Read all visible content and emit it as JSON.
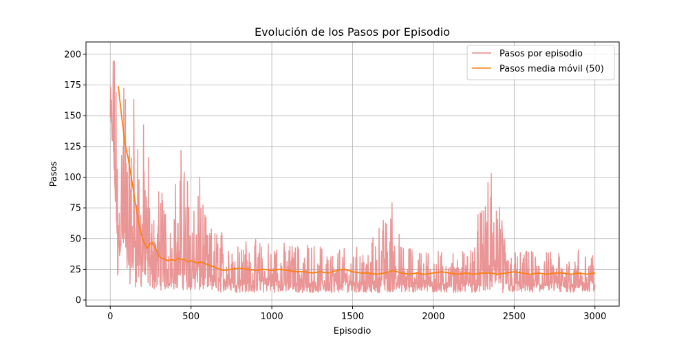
{
  "chart_data": {
    "type": "line",
    "title": "Evolución de los Pasos por Episodio",
    "xlabel": "Episodio",
    "ylabel": "Pasos",
    "xlim": [
      -150,
      3150
    ],
    "ylim": [
      -5,
      210
    ],
    "xticks": [
      0,
      500,
      1000,
      1500,
      2000,
      2500,
      3000
    ],
    "yticks": [
      0,
      25,
      50,
      75,
      100,
      125,
      150,
      175,
      200
    ],
    "grid": true,
    "legend_position": "top-right",
    "series": [
      {
        "name": "Pasos por episodio",
        "color": "#e8898b",
        "envelope": [
          {
            "x": 0,
            "low": 137,
            "high": 200
          },
          {
            "x": 20,
            "low": 110,
            "high": 200
          },
          {
            "x": 35,
            "low": 60,
            "high": 200
          },
          {
            "x": 45,
            "low": 5,
            "high": 200
          },
          {
            "x": 60,
            "low": 40,
            "high": 200
          },
          {
            "x": 80,
            "low": 25,
            "high": 200
          },
          {
            "x": 100,
            "low": 15,
            "high": 200
          },
          {
            "x": 130,
            "low": 12,
            "high": 200
          },
          {
            "x": 160,
            "low": 10,
            "high": 170
          },
          {
            "x": 200,
            "low": 8,
            "high": 150
          },
          {
            "x": 250,
            "low": 8,
            "high": 120
          },
          {
            "x": 300,
            "low": 8,
            "high": 100
          },
          {
            "x": 350,
            "low": 8,
            "high": 85
          },
          {
            "x": 400,
            "low": 8,
            "high": 100
          },
          {
            "x": 460,
            "low": 8,
            "high": 137
          },
          {
            "x": 500,
            "low": 8,
            "high": 95
          },
          {
            "x": 560,
            "low": 7,
            "high": 100
          },
          {
            "x": 600,
            "low": 7,
            "high": 60
          },
          {
            "x": 700,
            "low": 6,
            "high": 58
          },
          {
            "x": 800,
            "low": 6,
            "high": 52
          },
          {
            "x": 900,
            "low": 6,
            "high": 50
          },
          {
            "x": 1000,
            "low": 6,
            "high": 48
          },
          {
            "x": 1200,
            "low": 6,
            "high": 46
          },
          {
            "x": 1400,
            "low": 6,
            "high": 45
          },
          {
            "x": 1600,
            "low": 6,
            "high": 45
          },
          {
            "x": 1750,
            "low": 6,
            "high": 85
          },
          {
            "x": 1800,
            "low": 6,
            "high": 45
          },
          {
            "x": 2000,
            "low": 6,
            "high": 42
          },
          {
            "x": 2200,
            "low": 6,
            "high": 40
          },
          {
            "x": 2397,
            "low": 6,
            "high": 120
          },
          {
            "x": 2450,
            "low": 6,
            "high": 40
          },
          {
            "x": 2600,
            "low": 6,
            "high": 40
          },
          {
            "x": 2800,
            "low": 6,
            "high": 40
          },
          {
            "x": 3000,
            "low": 7,
            "high": 44
          }
        ]
      },
      {
        "name": "Pasos media móvil (50)",
        "color": "#ff7f0e",
        "x": [
          50,
          60,
          70,
          80,
          90,
          100,
          110,
          120,
          130,
          140,
          150,
          160,
          170,
          180,
          190,
          200,
          210,
          220,
          230,
          240,
          250,
          260,
          270,
          280,
          290,
          300,
          320,
          340,
          360,
          380,
          400,
          420,
          440,
          460,
          480,
          500,
          520,
          540,
          560,
          580,
          600,
          620,
          640,
          660,
          680,
          700,
          750,
          800,
          850,
          900,
          950,
          1000,
          1050,
          1100,
          1150,
          1200,
          1250,
          1300,
          1350,
          1400,
          1450,
          1500,
          1550,
          1600,
          1650,
          1700,
          1750,
          1800,
          1850,
          1900,
          1950,
          2000,
          2050,
          2100,
          2150,
          2200,
          2250,
          2300,
          2350,
          2400,
          2450,
          2500,
          2550,
          2600,
          2650,
          2700,
          2750,
          2800,
          2850,
          2900,
          2950,
          3000
        ],
        "y": [
          174,
          162,
          150,
          140,
          128,
          122,
          116,
          108,
          100,
          92,
          83,
          75,
          68,
          60,
          55,
          50,
          47,
          44,
          42,
          45,
          46,
          47,
          44,
          42,
          40,
          36,
          34,
          33,
          32,
          33,
          32,
          34,
          33,
          33,
          31,
          32,
          31,
          30,
          31,
          30,
          29,
          28,
          27,
          26,
          25,
          24,
          25,
          26,
          25,
          24,
          25,
          24,
          25,
          24,
          23,
          23,
          22,
          23,
          22,
          24,
          25,
          23,
          22,
          22,
          21,
          22,
          24,
          22,
          21,
          22,
          21,
          22,
          23,
          22,
          21,
          22,
          21,
          22,
          22,
          21,
          22,
          23,
          22,
          21,
          22,
          21,
          22,
          22,
          21,
          22,
          21,
          22
        ]
      }
    ]
  }
}
